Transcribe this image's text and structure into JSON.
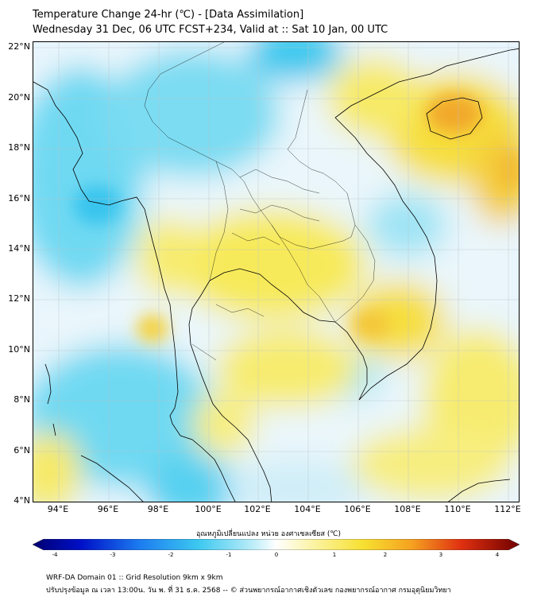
{
  "title": {
    "line1": "Temperature Change 24-hr (℃) - [Data Assimilation]",
    "line2": "Wednesday 31 Dec, 06 UTC FCST+234, Valid at :: Sat 10 Jan, 00 UTC"
  },
  "map": {
    "lat_labels": [
      "22°N",
      "20°N",
      "18°N",
      "16°N",
      "14°N",
      "12°N",
      "10°N",
      "8°N",
      "6°N",
      "4°N"
    ],
    "lon_labels": [
      "94°E",
      "96°E",
      "98°E",
      "100°E",
      "102°E",
      "104°E",
      "106°E",
      "108°E",
      "110°E",
      "112°E"
    ],
    "lat_range": [
      4,
      22.2
    ],
    "lon_range": [
      93,
      112.5
    ],
    "grid": true,
    "colors": {
      "cool": "#5fd6f2",
      "neutral": "#eef6fb",
      "warm": "#f7e64a",
      "hot": "#f2a72a",
      "border": "#000000"
    }
  },
  "colorbar": {
    "label": "อุณหภูมิเปลี่ยนแปลง หน่วย องศาเซลเซียส (℃)",
    "ticks": [
      "-4",
      "-3",
      "-2",
      "-1",
      "0",
      "1",
      "2",
      "3",
      "4"
    ],
    "range": [
      -4,
      4
    ]
  },
  "footer": {
    "line1": "WRF-DA Domain 01 :: Grid Resolution 9km x 9km",
    "line2": "ปรับปรุงข้อมูล ณ เวลา 13:00น. วัน พ. ที่ 31 ธ.ค. 2568 -- © ส่วนพยากรณ์อากาศเชิงตัวเลข กองพยากรณ์อากาศ กรมอุตุนิยมวิทยา"
  }
}
